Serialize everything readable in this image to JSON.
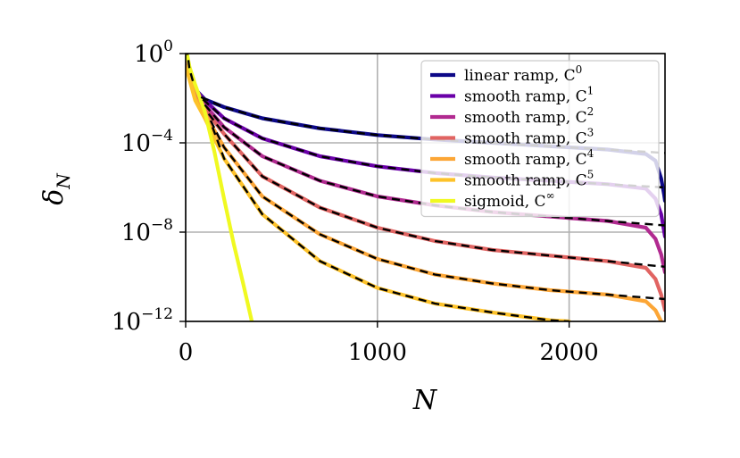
{
  "chart_data": {
    "type": "line",
    "title": "",
    "xlabel": "N",
    "ylabel": "δ",
    "ylabel_sub": "N",
    "xscale": "linear",
    "yscale": "log",
    "xlim": [
      0,
      2500
    ],
    "ylim_exp": [
      -12,
      0
    ],
    "grid": true,
    "legend_position": "top-right",
    "x_ticks": [
      {
        "value": 0,
        "label": "0"
      },
      {
        "value": 1000,
        "label": "1000"
      },
      {
        "value": 2000,
        "label": "2000"
      }
    ],
    "y_ticks": [
      {
        "exp": 0,
        "base": "10",
        "sup": "0"
      },
      {
        "exp": -4,
        "base": "10",
        "sup": "−4"
      },
      {
        "exp": -8,
        "base": "10",
        "sup": "−8"
      },
      {
        "exp": -12,
        "base": "10",
        "sup": "−12"
      }
    ],
    "fit_style": "black dashed",
    "series": [
      {
        "name": "linear ramp, C",
        "sup": "0",
        "color": "#0d0887",
        "points": [
          [
            5,
            -0.5
          ],
          [
            50,
            -1.6
          ],
          [
            100,
            -2.05
          ],
          [
            200,
            -2.4
          ],
          [
            400,
            -2.9
          ],
          [
            700,
            -3.35
          ],
          [
            1000,
            -3.65
          ],
          [
            1300,
            -3.85
          ],
          [
            1600,
            -4.0
          ],
          [
            1900,
            -4.15
          ],
          [
            2200,
            -4.3
          ],
          [
            2400,
            -4.5
          ],
          [
            2450,
            -4.8
          ],
          [
            2480,
            -5.6
          ],
          [
            2495,
            -6.3
          ],
          [
            2500,
            -6.6
          ]
        ],
        "fit": [
          [
            80,
            -1.95
          ],
          [
            200,
            -2.4
          ],
          [
            400,
            -2.9
          ],
          [
            700,
            -3.35
          ],
          [
            1000,
            -3.65
          ],
          [
            1300,
            -3.85
          ],
          [
            1600,
            -4.0
          ],
          [
            1900,
            -4.15
          ],
          [
            2200,
            -4.3
          ],
          [
            2500,
            -4.45
          ]
        ]
      },
      {
        "name": "smooth ramp, C",
        "sup": "1",
        "color": "#6a00a8",
        "points": [
          [
            5,
            -0.4
          ],
          [
            50,
            -1.6
          ],
          [
            100,
            -2.1
          ],
          [
            200,
            -2.9
          ],
          [
            400,
            -3.8
          ],
          [
            700,
            -4.6
          ],
          [
            1000,
            -5.05
          ],
          [
            1300,
            -5.35
          ],
          [
            1600,
            -5.55
          ],
          [
            1900,
            -5.7
          ],
          [
            2200,
            -5.85
          ],
          [
            2400,
            -6.05
          ],
          [
            2450,
            -6.5
          ],
          [
            2480,
            -7.2
          ],
          [
            2500,
            -8.2
          ]
        ],
        "fit": [
          [
            90,
            -2.05
          ],
          [
            200,
            -2.9
          ],
          [
            400,
            -3.8
          ],
          [
            700,
            -4.6
          ],
          [
            1000,
            -5.05
          ],
          [
            1300,
            -5.35
          ],
          [
            1600,
            -5.55
          ],
          [
            1900,
            -5.7
          ],
          [
            2200,
            -5.85
          ],
          [
            2500,
            -6.0
          ]
        ]
      },
      {
        "name": "smooth ramp, C",
        "sup": "2",
        "color": "#b12a90",
        "points": [
          [
            5,
            -0.4
          ],
          [
            50,
            -1.8
          ],
          [
            100,
            -2.3
          ],
          [
            200,
            -3.3
          ],
          [
            400,
            -4.6
          ],
          [
            700,
            -5.7
          ],
          [
            1000,
            -6.4
          ],
          [
            1300,
            -6.8
          ],
          [
            1600,
            -7.1
          ],
          [
            1900,
            -7.3
          ],
          [
            2200,
            -7.5
          ],
          [
            2400,
            -7.8
          ],
          [
            2450,
            -8.3
          ],
          [
            2480,
            -9.0
          ],
          [
            2500,
            -9.8
          ]
        ],
        "fit": [
          [
            100,
            -2.3
          ],
          [
            200,
            -3.3
          ],
          [
            400,
            -4.6
          ],
          [
            700,
            -5.7
          ],
          [
            1000,
            -6.4
          ],
          [
            1300,
            -6.8
          ],
          [
            1600,
            -7.1
          ],
          [
            1900,
            -7.3
          ],
          [
            2200,
            -7.5
          ],
          [
            2500,
            -7.7
          ]
        ]
      },
      {
        "name": "smooth ramp, C",
        "sup": "3",
        "color": "#e16462",
        "points": [
          [
            5,
            -0.5
          ],
          [
            50,
            -1.9
          ],
          [
            100,
            -2.5
          ],
          [
            200,
            -3.6
          ],
          [
            400,
            -5.5
          ],
          [
            700,
            -6.9
          ],
          [
            1000,
            -7.8
          ],
          [
            1300,
            -8.4
          ],
          [
            1600,
            -8.8
          ],
          [
            1900,
            -9.05
          ],
          [
            2200,
            -9.3
          ],
          [
            2400,
            -9.6
          ],
          [
            2450,
            -10.1
          ],
          [
            2480,
            -10.8
          ],
          [
            2500,
            -11.5
          ]
        ],
        "fit": [
          [
            120,
            -2.7
          ],
          [
            200,
            -3.6
          ],
          [
            400,
            -5.5
          ],
          [
            700,
            -6.9
          ],
          [
            1000,
            -7.8
          ],
          [
            1300,
            -8.4
          ],
          [
            1600,
            -8.8
          ],
          [
            1900,
            -9.05
          ],
          [
            2200,
            -9.3
          ],
          [
            2500,
            -9.55
          ]
        ]
      },
      {
        "name": "smooth ramp, C",
        "sup": "4",
        "color": "#fca636",
        "points": [
          [
            5,
            -0.6
          ],
          [
            50,
            -2.0
          ],
          [
            100,
            -2.7
          ],
          [
            200,
            -4.2
          ],
          [
            400,
            -6.4
          ],
          [
            700,
            -8.1
          ],
          [
            1000,
            -9.2
          ],
          [
            1300,
            -9.9
          ],
          [
            1600,
            -10.3
          ],
          [
            1900,
            -10.6
          ],
          [
            2200,
            -10.8
          ],
          [
            2400,
            -11.1
          ],
          [
            2450,
            -11.5
          ],
          [
            2480,
            -12.0
          ]
        ],
        "fit": [
          [
            130,
            -3.0
          ],
          [
            200,
            -4.2
          ],
          [
            400,
            -6.4
          ],
          [
            700,
            -8.1
          ],
          [
            1000,
            -9.2
          ],
          [
            1300,
            -9.9
          ],
          [
            1600,
            -10.3
          ],
          [
            1900,
            -10.6
          ],
          [
            2200,
            -10.8
          ],
          [
            2500,
            -11.0
          ]
        ]
      },
      {
        "name": "smooth ramp, C",
        "sup": "5",
        "color": "#fdc229",
        "points": [
          [
            5,
            -0.7
          ],
          [
            50,
            -2.1
          ],
          [
            100,
            -2.9
          ],
          [
            200,
            -4.7
          ],
          [
            400,
            -7.2
          ],
          [
            700,
            -9.3
          ],
          [
            1000,
            -10.5
          ],
          [
            1300,
            -11.2
          ],
          [
            1600,
            -11.6
          ],
          [
            1900,
            -11.95
          ],
          [
            2000,
            -12.0
          ]
        ],
        "fit": [
          [
            140,
            -3.3
          ],
          [
            200,
            -4.7
          ],
          [
            400,
            -7.2
          ],
          [
            700,
            -9.3
          ],
          [
            1000,
            -10.5
          ],
          [
            1300,
            -11.2
          ],
          [
            1600,
            -11.6
          ],
          [
            1900,
            -11.95
          ],
          [
            2000,
            -12.0
          ]
        ]
      },
      {
        "name": "sigmoid, C",
        "sup": "∞",
        "color": "#f0f921",
        "points": [
          [
            0,
            0.3
          ],
          [
            20,
            -0.6
          ],
          [
            50,
            -1.4
          ],
          [
            100,
            -2.6
          ],
          [
            150,
            -4.4
          ],
          [
            200,
            -6.5
          ],
          [
            250,
            -8.5
          ],
          [
            300,
            -10.3
          ],
          [
            345,
            -12.0
          ]
        ],
        "fit": [
          [
            5,
            0.3
          ],
          [
            20,
            -0.7
          ],
          [
            40,
            -1.3
          ]
        ]
      }
    ]
  }
}
